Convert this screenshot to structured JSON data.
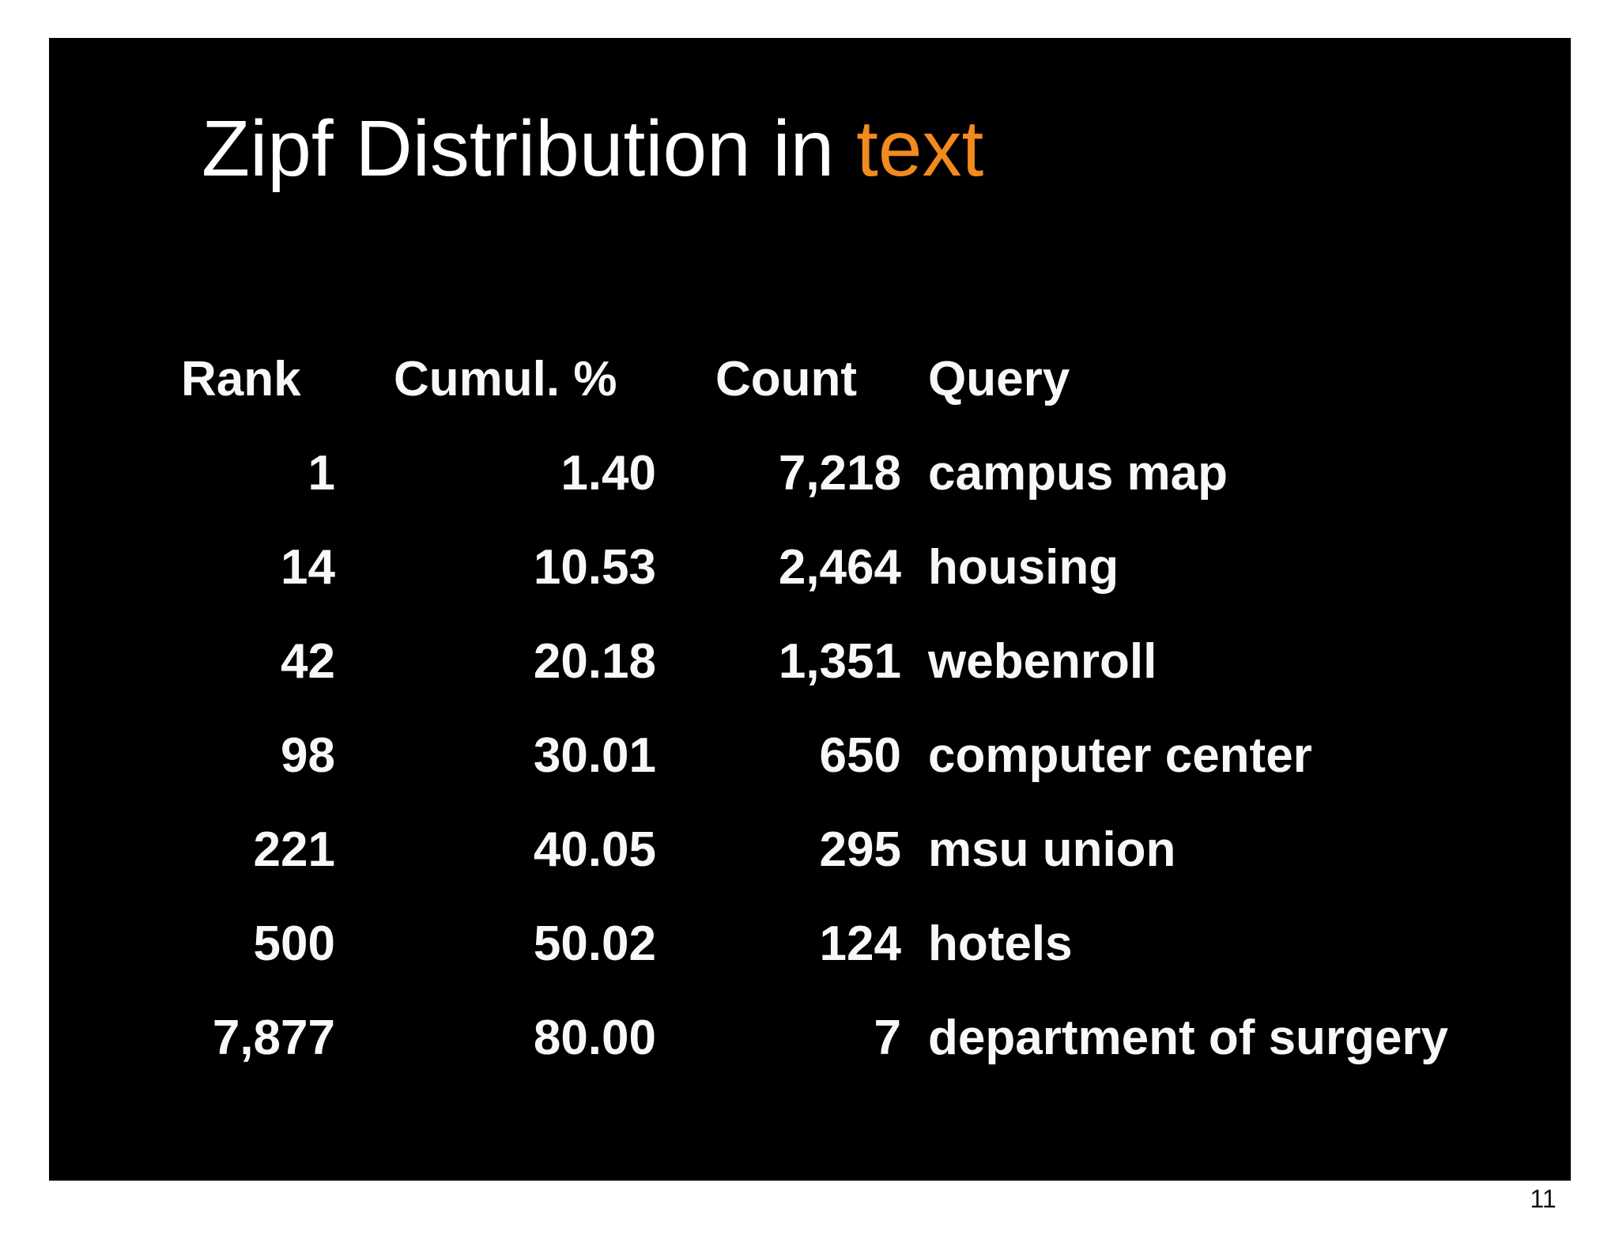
{
  "slide": {
    "title": {
      "main": "Zipf Distribution in ",
      "highlight": "text"
    },
    "accent_color": "#F28A1E",
    "background_color": "#000000",
    "text_color": "#ffffff"
  },
  "table": {
    "headers": {
      "rank": "Rank",
      "cumul": "Cumul. %",
      "count": "Count",
      "query": "Query"
    },
    "rows": [
      {
        "rank": "1",
        "cumul": "1.40",
        "count": "7,218",
        "query": "campus map"
      },
      {
        "rank": "14",
        "cumul": "10.53",
        "count": "2,464",
        "query": "housing"
      },
      {
        "rank": "42",
        "cumul": "20.18",
        "count": "1,351",
        "query": "webenroll"
      },
      {
        "rank": "98",
        "cumul": "30.01",
        "count": "650",
        "query": "computer center"
      },
      {
        "rank": "221",
        "cumul": "40.05",
        "count": "295",
        "query": "msu union"
      },
      {
        "rank": "500",
        "cumul": "50.02",
        "count": "124",
        "query": "hotels"
      },
      {
        "rank": "7,877",
        "cumul": "80.00",
        "count": "7",
        "query": "department of surgery"
      }
    ]
  },
  "chart_data": {
    "type": "table",
    "title": "Zipf Distribution in text",
    "columns": [
      "Rank",
      "Cumul. %",
      "Count",
      "Query"
    ],
    "rows": [
      [
        1,
        1.4,
        7218,
        "campus map"
      ],
      [
        14,
        10.53,
        2464,
        "housing"
      ],
      [
        42,
        20.18,
        1351,
        "webenroll"
      ],
      [
        98,
        30.01,
        650,
        "computer center"
      ],
      [
        221,
        40.05,
        295,
        "msu union"
      ],
      [
        500,
        50.02,
        124,
        "hotels"
      ],
      [
        7877,
        80.0,
        7,
        "department of surgery"
      ]
    ]
  },
  "page_number": "11"
}
